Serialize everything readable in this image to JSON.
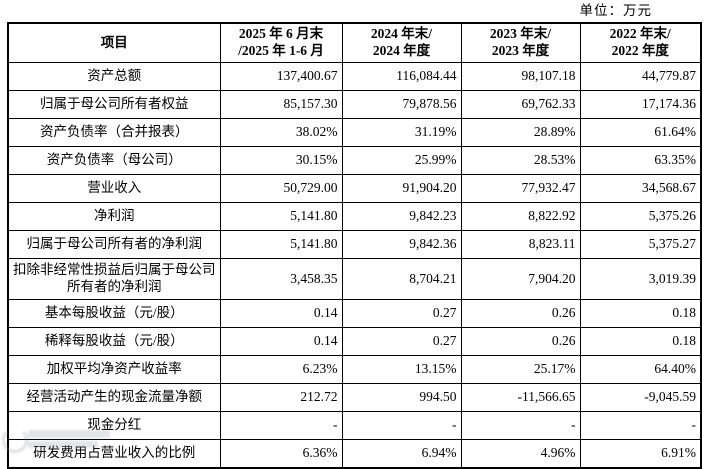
{
  "unit_label": "单位：万元",
  "table": {
    "item_header": "项目",
    "period_headers": [
      {
        "line1": "2025 年 6 月末",
        "line2": "/2025 年 1-6 月"
      },
      {
        "line1": "2024 年末/",
        "line2": "2024 年度"
      },
      {
        "line1": "2023 年末/",
        "line2": "2023 年度"
      },
      {
        "line1": "2022 年末/",
        "line2": "2022 年度"
      }
    ],
    "rows": [
      {
        "item": "资产总额",
        "values": [
          "137,400.67",
          "116,084.44",
          "98,107.18",
          "44,779.87"
        ]
      },
      {
        "item": "归属于母公司所有者权益",
        "values": [
          "85,157.30",
          "79,878.56",
          "69,762.33",
          "17,174.36"
        ]
      },
      {
        "item": "资产负债率（合并报表）",
        "values": [
          "38.02%",
          "31.19%",
          "28.89%",
          "61.64%"
        ]
      },
      {
        "item": "资产负债率（母公司）",
        "values": [
          "30.15%",
          "25.99%",
          "28.53%",
          "63.35%"
        ]
      },
      {
        "item": "营业收入",
        "values": [
          "50,729.00",
          "91,904.20",
          "77,932.47",
          "34,568.67"
        ]
      },
      {
        "item": "净利润",
        "values": [
          "5,141.80",
          "9,842.23",
          "8,822.92",
          "5,375.26"
        ]
      },
      {
        "item": "归属于母公司所有者的净利润",
        "values": [
          "5,141.80",
          "9,842.36",
          "8,823.11",
          "5,375.27"
        ]
      },
      {
        "item": "扣除非经常性损益后归属于母公司所有者的净利润",
        "tall": true,
        "values": [
          "3,458.35",
          "8,704.21",
          "7,904.20",
          "3,019.39"
        ]
      },
      {
        "item": "基本每股收益（元/股）",
        "values": [
          "0.14",
          "0.27",
          "0.26",
          "0.18"
        ]
      },
      {
        "item": "稀释每股收益（元/股）",
        "values": [
          "0.14",
          "0.27",
          "0.26",
          "0.18"
        ]
      },
      {
        "item": "加权平均净资产收益率",
        "values": [
          "6.23%",
          "13.15%",
          "25.17%",
          "64.40%"
        ]
      },
      {
        "item": "经营活动产生的现金流量净额",
        "values": [
          "212.72",
          "994.50",
          "-11,566.65",
          "-9,045.59"
        ]
      },
      {
        "item": "现金分红",
        "values": [
          "-",
          "-",
          "-",
          "-"
        ]
      },
      {
        "item": "研发费用占营业收入的比例",
        "values": [
          "6.36%",
          "6.94%",
          "4.96%",
          "6.91%"
        ]
      }
    ]
  }
}
